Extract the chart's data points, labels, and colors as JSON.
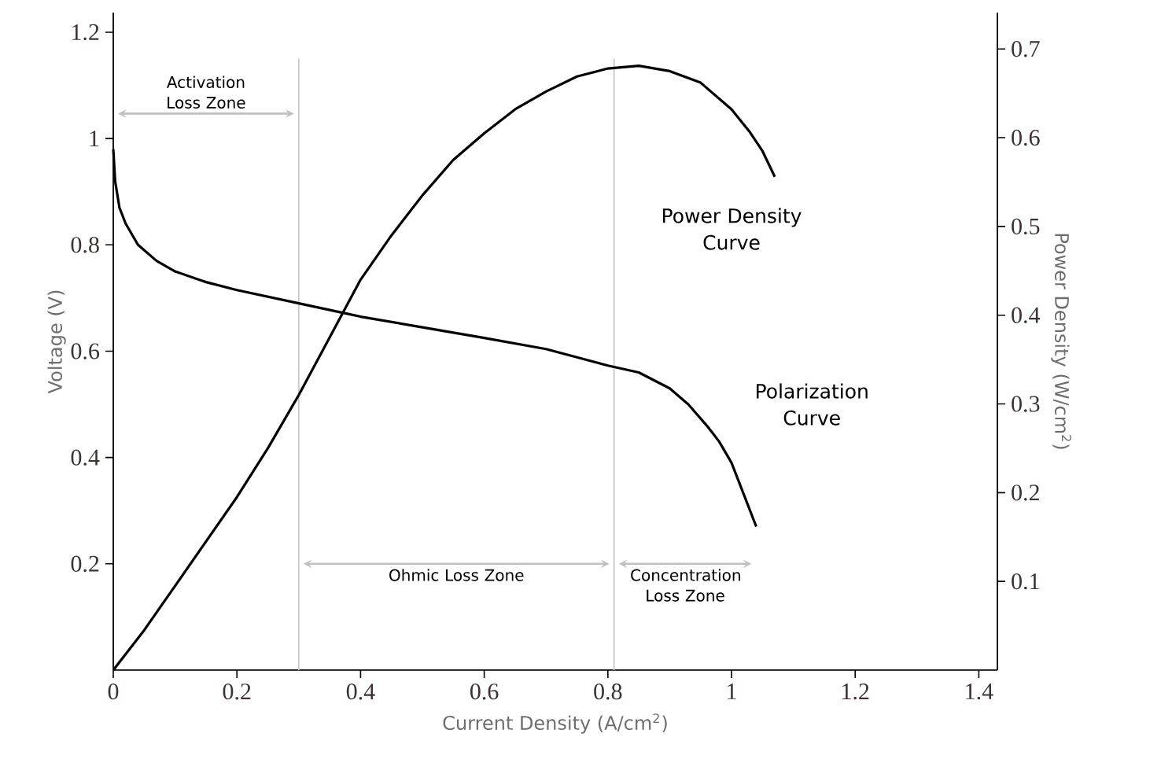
{
  "chart_data": {
    "type": "line",
    "xlabel": "Current Density (A/cm$^{2}$)",
    "ylabel": "Voltage (V)",
    "y2label": "Power Density (W/cm$^{2}$)",
    "xlim": [
      0,
      1.43
    ],
    "xticks": [
      0,
      0.2,
      0.4,
      0.6,
      0.8,
      1,
      1.2,
      1.4
    ],
    "ylim": [
      0,
      1.237
    ],
    "yticks": [
      0.2,
      0.4,
      0.6,
      0.8,
      1,
      1.2
    ],
    "y2lim": [
      0,
      0.741
    ],
    "y2ticks": [
      0.1,
      0.2,
      0.3,
      0.4,
      0.5,
      0.6,
      0.7
    ],
    "grid": false,
    "marker": "none",
    "line_style": "solid",
    "series": [
      {
        "name": "Polarization Curve",
        "color": "#000000",
        "x": [
          0,
          0.003,
          0.01,
          0.02,
          0.04,
          0.07,
          0.1,
          0.15,
          0.2,
          0.3,
          0.38,
          0.4,
          0.5,
          0.6,
          0.7,
          0.8,
          0.85,
          0.9,
          0.93,
          0.96,
          0.98,
          1.0,
          1.02,
          1.04
        ],
        "values": [
          0.98,
          0.92,
          0.87,
          0.84,
          0.8,
          0.77,
          0.75,
          0.73,
          0.715,
          0.69,
          0.67,
          0.665,
          0.645,
          0.625,
          0.604,
          0.573,
          0.56,
          0.53,
          0.5,
          0.46,
          0.43,
          0.39,
          0.33,
          0.27
        ]
      },
      {
        "name": "Power Density Curve",
        "color": "#000000",
        "axis": "y2",
        "x": [
          0,
          0.05,
          0.1,
          0.15,
          0.2,
          0.25,
          0.3,
          0.35,
          0.4,
          0.45,
          0.5,
          0.55,
          0.6,
          0.65,
          0.7,
          0.75,
          0.8,
          0.85,
          0.9,
          0.95,
          1.0,
          1.03,
          1.05,
          1.07
        ],
        "values": [
          0,
          0.045,
          0.095,
          0.145,
          0.195,
          0.25,
          0.31,
          0.375,
          0.44,
          0.49,
          0.535,
          0.575,
          0.605,
          0.632,
          0.652,
          0.669,
          0.678,
          0.681,
          0.675,
          0.662,
          0.632,
          0.606,
          0.585,
          0.556
        ]
      }
    ],
    "ref_lines": [
      {
        "axis": "x",
        "value": 0.3,
        "color": "#c8c8c8"
      },
      {
        "axis": "x",
        "value": 0.81,
        "color": "#c8c8c8"
      }
    ],
    "annotations": [
      "Activation Loss Zone",
      "Ohmic Loss Zone",
      "Concentration Loss Zone"
    ]
  }
}
